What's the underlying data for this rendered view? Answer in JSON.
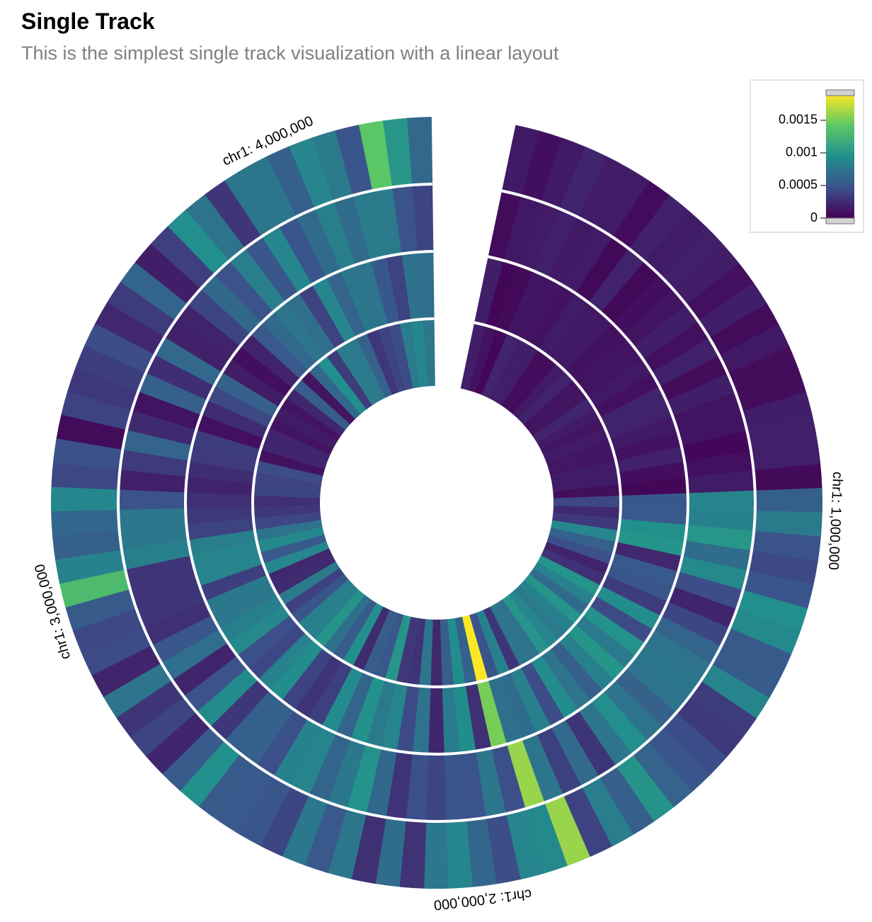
{
  "header": {
    "title": "Single Track",
    "subtitle": "This is the simplest single track visualization with a linear layout"
  },
  "chart_data": {
    "type": "heatmap",
    "layout": "circular",
    "title": "Single Track",
    "subtitle": "This is the simplest single track visualization with a linear layout",
    "chromosome": "chr1",
    "genomic_range": [
      0,
      4300000
    ],
    "tracks": 4,
    "bins_per_track": 96,
    "axis_labels": [
      {
        "text": "chr1: 1,000,000",
        "position": 1000000
      },
      {
        "text": "chr1: 2,000,000",
        "position": 2000000
      },
      {
        "text": "chr1: 3,000,000",
        "position": 3000000
      },
      {
        "text": "chr1: 4,000,000",
        "position": 4000000
      }
    ],
    "color_scale": {
      "name": "viridis",
      "domain": [
        0,
        0.0019
      ],
      "colors": [
        "#440154",
        "#3b528b",
        "#21908d",
        "#5dc963",
        "#fde725"
      ]
    },
    "legend": {
      "placement": "top-right",
      "ticks": [
        {
          "value": 0.0015,
          "label": "0.0015"
        },
        {
          "value": 0.001,
          "label": "0.001"
        },
        {
          "value": 0.0005,
          "label": "0.0005"
        },
        {
          "value": 0,
          "label": "0"
        }
      ]
    },
    "highlights": [
      {
        "track": 0,
        "position": 1800000,
        "value": 0.0016
      },
      {
        "track": 1,
        "position": 1850000,
        "value": 0.0016
      },
      {
        "track": 2,
        "position": 1900000,
        "value": 0.0015
      },
      {
        "track": 3,
        "position": 1900000,
        "value": 0.0019
      },
      {
        "track": 0,
        "position": 4200000,
        "value": 0.0014
      },
      {
        "track": 0,
        "position": 3020000,
        "value": 0.0013
      }
    ]
  }
}
